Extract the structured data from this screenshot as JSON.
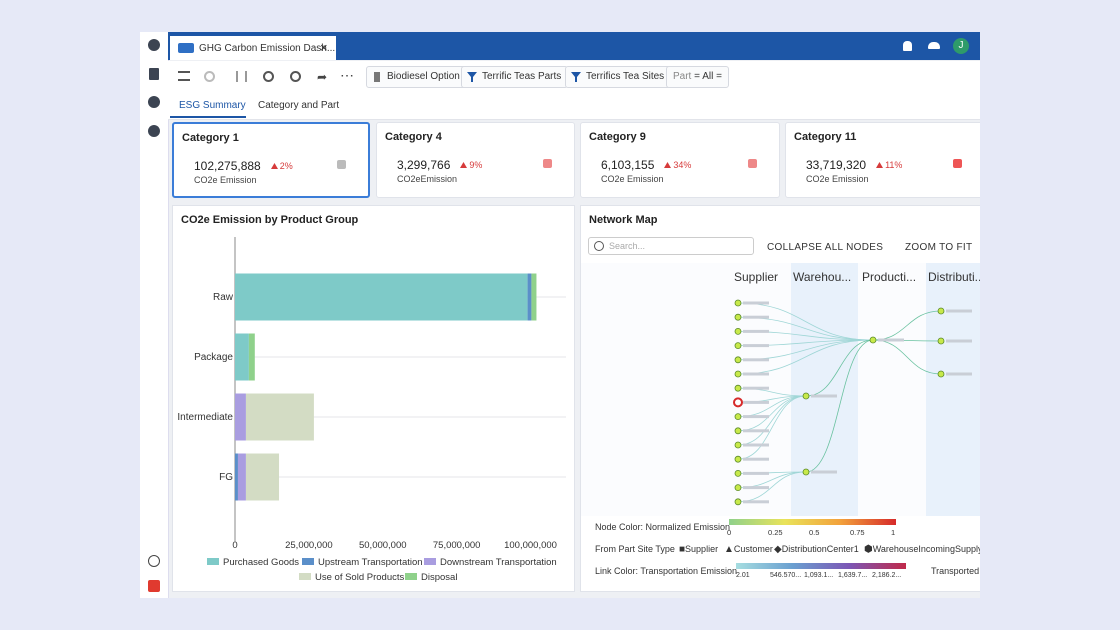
{
  "app": {
    "tab_title": "GHG Carbon Emission Dash...",
    "avatar": "J",
    "toolbar": {
      "buttons": [
        "Biodiesel Option",
        "Terrific Teas Parts",
        "Terrifics Tea Sites"
      ],
      "filter_label": "Part",
      "filter_value": "= All ="
    },
    "tabs": [
      "ESG Summary",
      "Category and Part"
    ]
  },
  "kpis": [
    {
      "title": "Category 1",
      "value": "102,275,888",
      "change": "2%",
      "label": "CO2e Emission"
    },
    {
      "title": "Category 4",
      "value": "3,299,766",
      "change": "9%",
      "label": "CO2eEmission"
    },
    {
      "title": "Category 9",
      "value": "6,103,155",
      "change": "34%",
      "label": "CO2e Emission"
    },
    {
      "title": "Category 11",
      "value": "33,719,320",
      "change": "11%",
      "label": "CO2e Emission"
    }
  ],
  "chart_data": {
    "type": "bar",
    "orientation": "horizontal",
    "stacked": true,
    "title": "CO2e Emission by Product Group",
    "categories": [
      "Raw",
      "Package",
      "Intermediate",
      "FG"
    ],
    "series": [
      {
        "name": "Purchased Goods",
        "color": "#7ecac8",
        "values": [
          99000000,
          4700000,
          0,
          0
        ]
      },
      {
        "name": "Upstream Transportation",
        "color": "#5b8fc9",
        "values": [
          1300000,
          0,
          0,
          1000000
        ]
      },
      {
        "name": "Downstream Transportation",
        "color": "#a99de0",
        "values": [
          0,
          0,
          3700000,
          2700000
        ]
      },
      {
        "name": "Use of Sold Products",
        "color": "#d3dcc4",
        "values": [
          0,
          0,
          23000000,
          11200000
        ]
      },
      {
        "name": "Disposal",
        "color": "#8fd18b",
        "values": [
          1700000,
          2000000,
          0,
          0
        ]
      }
    ],
    "xlim": [
      0,
      112000000
    ],
    "xticks": [
      0,
      {
        "value": 25000000,
        "label": "25,000,000"
      },
      {
        "value": 50000000,
        "label": "50,000,000"
      },
      {
        "value": 75000000,
        "label": "75,000,000"
      },
      {
        "value": 100000000,
        "label": "100,000,000"
      }
    ],
    "legend": "bottom"
  },
  "network_map": {
    "title": "Network Map",
    "search_placeholder": "Search...",
    "actions": [
      "COLLAPSE ALL NODES",
      "ZOOM TO FIT"
    ],
    "columns": [
      "Supplier",
      "Warehou...",
      "Producti...",
      "Distributi..."
    ],
    "legend": {
      "node_color": {
        "label": "Node Color: Normalized Emission",
        "ticks": [
          "0",
          "0.25",
          "0.5",
          "0.75",
          "1"
        ]
      },
      "site_type": {
        "label": "From Part Site Type",
        "items": [
          "Supplier",
          "Customer",
          "DistributionCenter1",
          "WarehouseIncomingSupply"
        ]
      },
      "link_color": {
        "label": "Link Color: Transportation Emission",
        "ticks": [
          "2.01",
          "546.570...",
          "1,093.1...",
          "1,639.7...",
          "2,186.2..."
        ]
      },
      "extra": "Transported C"
    }
  }
}
